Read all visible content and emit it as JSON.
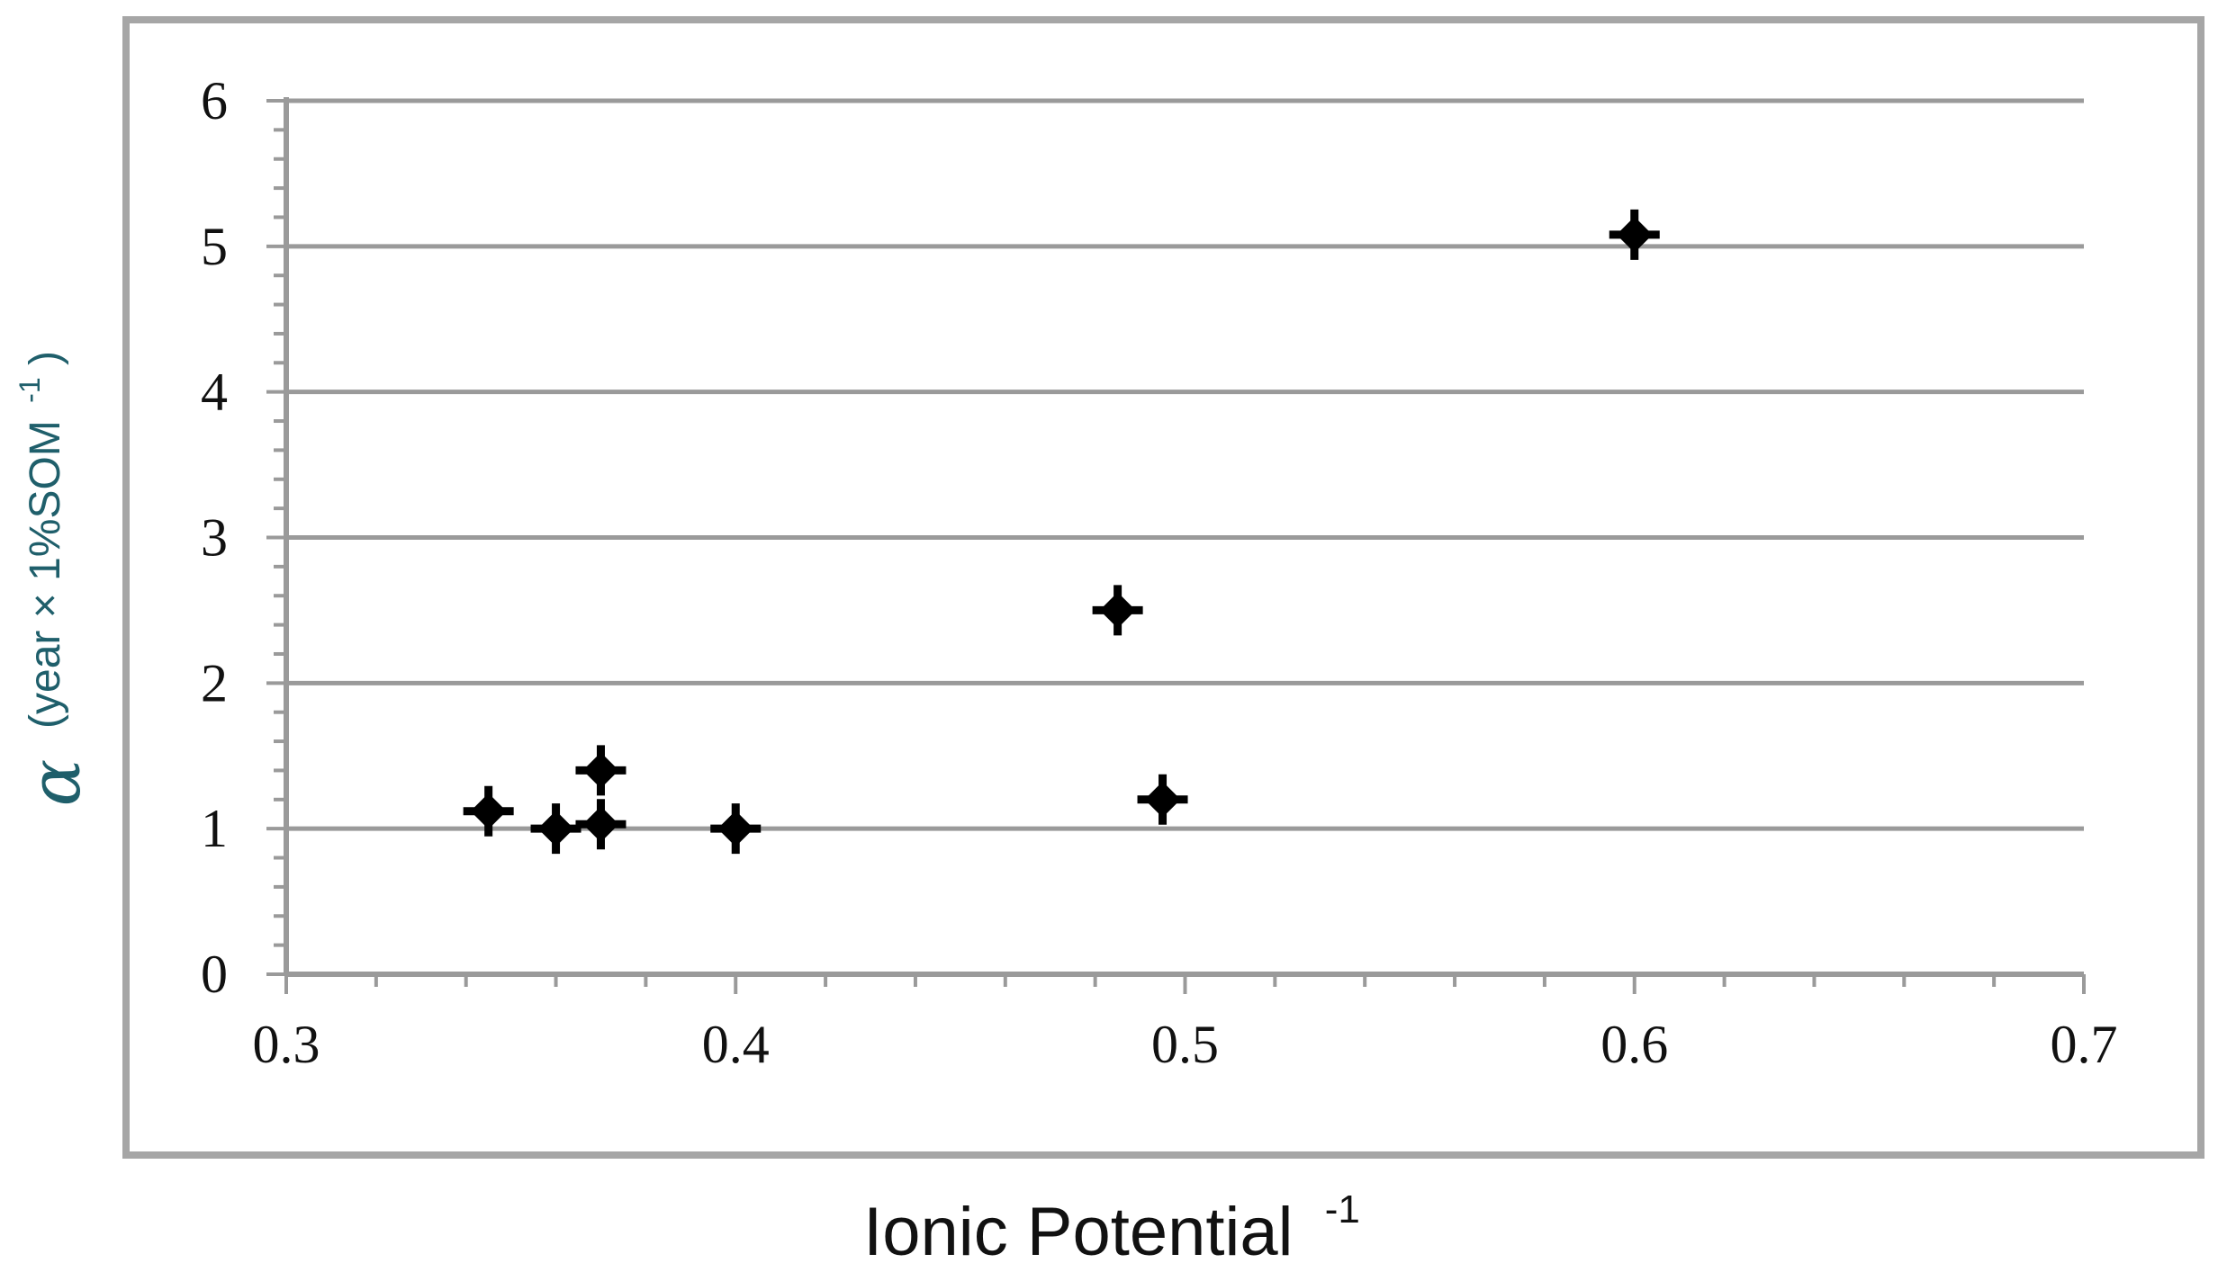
{
  "chart_data": {
    "type": "scatter",
    "title": "",
    "xlabel": "Ionic Potential",
    "xlabel_superscript": "-1",
    "ylabel_symbol": "α",
    "ylabel_units": "(year × 1%SOM",
    "ylabel_units_superscript": "-1",
    "ylabel_units_close": ")",
    "xlim": [
      0.3,
      0.7
    ],
    "ylim": [
      0,
      6
    ],
    "x_ticks": [
      "0.3",
      "0.4",
      "0.5",
      "0.6",
      "0.7"
    ],
    "y_ticks": [
      "0",
      "1",
      "2",
      "3",
      "4",
      "5",
      "6"
    ],
    "grid": "horizontal",
    "legend": "none",
    "series": [
      {
        "marker": "diamond",
        "color": "#000000",
        "points": [
          {
            "x": 0.345,
            "y": 1.12
          },
          {
            "x": 0.36,
            "y": 1.0
          },
          {
            "x": 0.37,
            "y": 1.03
          },
          {
            "x": 0.37,
            "y": 1.4
          },
          {
            "x": 0.4,
            "y": 1.0
          },
          {
            "x": 0.485,
            "y": 2.5
          },
          {
            "x": 0.495,
            "y": 1.2
          },
          {
            "x": 0.6,
            "y": 5.08
          }
        ]
      }
    ]
  }
}
